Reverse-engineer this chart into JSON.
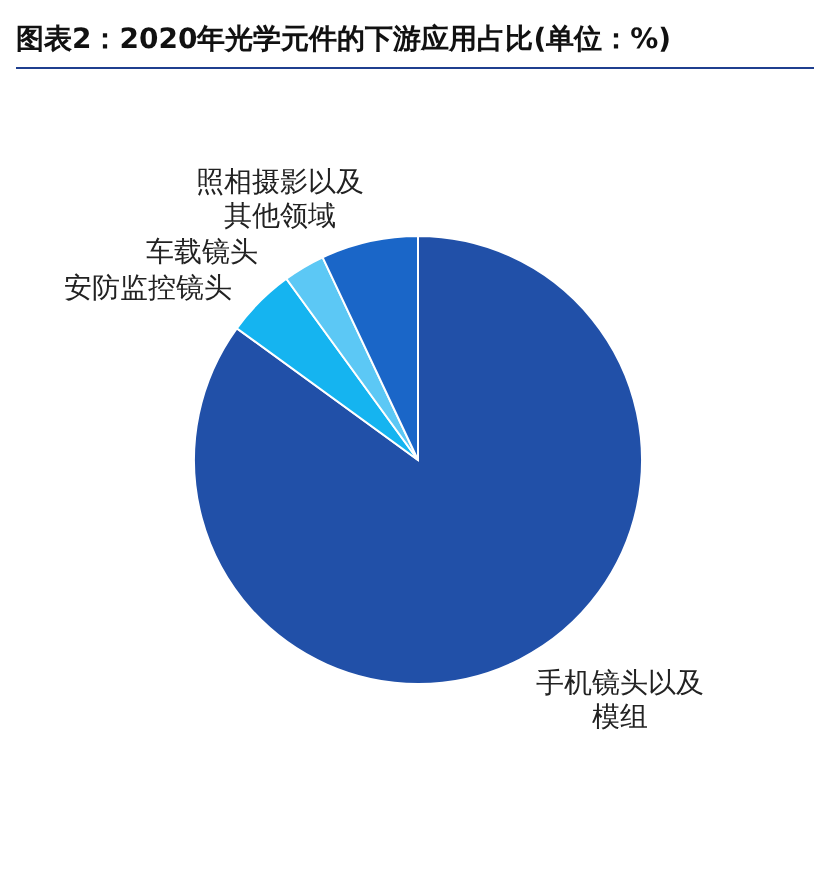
{
  "chart_data": {
    "type": "pie",
    "title": "图表2：2020年光学元件的下游应用占比(单位：%)",
    "categories": [
      "手机镜头以及模组",
      "安防监控镜头",
      "车载镜头",
      "照相摄影以及其他领域"
    ],
    "values": [
      85,
      5,
      3,
      7
    ],
    "colors": [
      "#2150a8",
      "#15b4f0",
      "#5cc8f5",
      "#1a66c8"
    ]
  }
}
